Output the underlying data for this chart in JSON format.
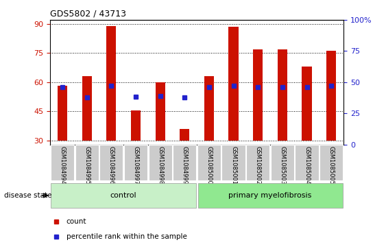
{
  "title": "GDS5802 / 43713",
  "samples": [
    "GSM1084994",
    "GSM1084995",
    "GSM1084996",
    "GSM1084997",
    "GSM1084998",
    "GSM1084999",
    "GSM1085000",
    "GSM1085001",
    "GSM1085002",
    "GSM1085003",
    "GSM1085004",
    "GSM1085005"
  ],
  "count_values": [
    58,
    63,
    89,
    45.5,
    60,
    36,
    63,
    88.5,
    77,
    77,
    68,
    76
  ],
  "percentile_values": [
    57.5,
    52,
    58,
    52.5,
    53,
    52,
    57.5,
    58,
    57.5,
    57.5,
    57.5,
    58
  ],
  "bar_bottom": 30,
  "ylim_left": [
    28,
    92
  ],
  "ylim_right": [
    0,
    100
  ],
  "yticks_left": [
    30,
    45,
    60,
    75,
    90
  ],
  "yticks_right": [
    0,
    25,
    50,
    75,
    100
  ],
  "ytick_labels_right": [
    "0",
    "25",
    "50",
    "75",
    "100%"
  ],
  "bar_color": "#cc1100",
  "percentile_color": "#2222cc",
  "control_samples": 6,
  "control_label": "control",
  "disease_label": "primary myelofibrosis",
  "disease_state_label": "disease state",
  "legend_count_label": "count",
  "legend_percentile_label": "percentile rank within the sample",
  "control_bg": "#c8f0c8",
  "disease_bg": "#90e890",
  "xticklabel_bg": "#cccccc"
}
